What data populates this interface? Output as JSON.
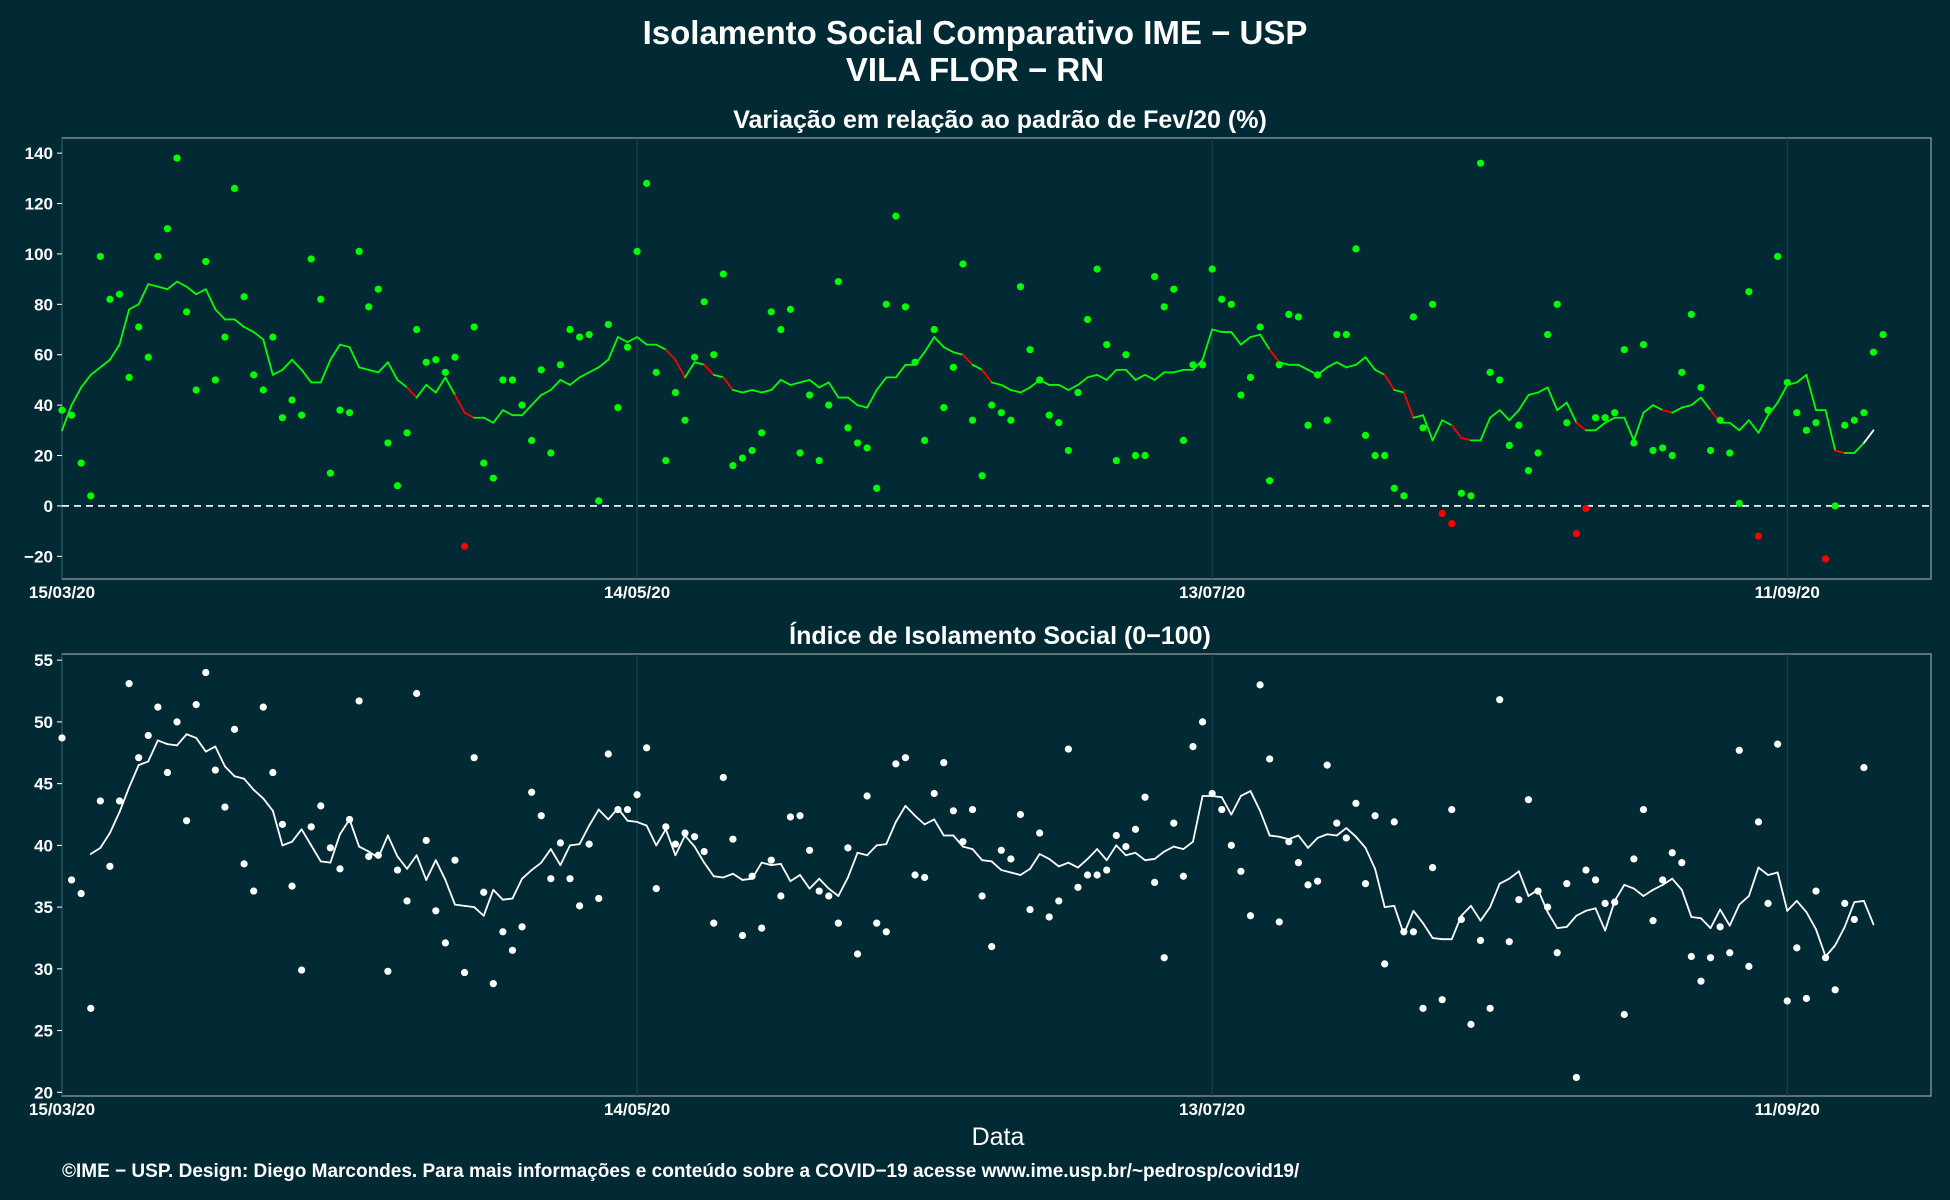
{
  "page": {
    "title_line1": "Isolamento Social Comparativo IME − USP",
    "title_line2": "VILA FLOR − RN",
    "credit": "©IME − USP. Design: Diego Marcondes. Para mais informações e conteúdo sobre a COVID−19 acesse www.ime.usp.br/~pedrosp/covid19/"
  },
  "colors": {
    "background": "#022a35",
    "panel_border": "#9aa3a6",
    "grid": "#1c4653",
    "positive": "#00ff00",
    "negative": "#ff0000",
    "index_points": "#ffffff",
    "trailing_segment": "#ffffff"
  },
  "chart_data": [
    {
      "type": "scatter",
      "title": "Variação em relação ao padrão de Fev/20 (%)",
      "xlabel": "",
      "ylabel": "",
      "x_start": "15/03/20",
      "x_tick_labels": [
        "15/03/20",
        "14/05/20",
        "13/07/20",
        "11/09/20"
      ],
      "x_tick_day_offsets": [
        0,
        60,
        120,
        180
      ],
      "xlim_days": [
        0,
        195
      ],
      "y_ticks": [
        -20,
        0,
        20,
        40,
        60,
        80,
        100,
        120,
        140
      ],
      "ylim": [
        -29,
        146
      ],
      "reference_line": 0,
      "grid": true,
      "legend": "none",
      "series": [
        {
          "kind": "daily_points",
          "values": [
            38,
            36,
            17,
            4,
            99,
            82,
            84,
            51,
            71,
            59,
            99,
            110,
            138,
            77,
            46,
            97,
            50,
            67,
            126,
            83,
            52,
            46,
            67,
            35,
            42,
            36,
            98,
            82,
            13,
            38,
            37,
            101,
            79,
            86,
            25,
            8,
            29,
            70,
            57,
            58,
            53,
            59,
            -16,
            71,
            17,
            11,
            50,
            50,
            40,
            26,
            54,
            21,
            56,
            70,
            67,
            68,
            2,
            72,
            39,
            63,
            101,
            128,
            53,
            18,
            45,
            34,
            59,
            81,
            60,
            92,
            16,
            19,
            22,
            29,
            77,
            70,
            78,
            21,
            44,
            18,
            40,
            89,
            31,
            25,
            23,
            7,
            80,
            115,
            79,
            57,
            26,
            70,
            39,
            55,
            96,
            34,
            12,
            40,
            37,
            34,
            87,
            62,
            50,
            36,
            33,
            22,
            45,
            74,
            94,
            64,
            18,
            60,
            20,
            20,
            91,
            79,
            86,
            26,
            56,
            56,
            94,
            82,
            80,
            44,
            51,
            71,
            10,
            56,
            76,
            75,
            32,
            52,
            34,
            68,
            68,
            102,
            28,
            20,
            20,
            7,
            4,
            75,
            31,
            80,
            -3,
            -7,
            5,
            4,
            136,
            53,
            50,
            24,
            32,
            14,
            21,
            68,
            80,
            33,
            -11,
            -1,
            35,
            35,
            37,
            62,
            25,
            64,
            22,
            23,
            20,
            53,
            76,
            47,
            22,
            34,
            21,
            1,
            85,
            -12,
            38,
            99,
            49,
            37,
            30,
            33,
            -21,
            0,
            32,
            34,
            37,
            61,
            68
          ],
          "color_rule": "green when value >= 0, red when value < 0"
        },
        {
          "kind": "rolling_mean_7d",
          "start_day": 0,
          "values": [
            30,
            40,
            47,
            52,
            55,
            58,
            64,
            78,
            80,
            88,
            87,
            86,
            89,
            87,
            84,
            86,
            78,
            74,
            74,
            71,
            69,
            66,
            52,
            54,
            58,
            54,
            49,
            49,
            58,
            64,
            63,
            55,
            54,
            53,
            57,
            50,
            47,
            43,
            48,
            45,
            51,
            44,
            37,
            35,
            35,
            33,
            38,
            36,
            36,
            40,
            44,
            46,
            50,
            48,
            51,
            53,
            55,
            58,
            67,
            65,
            67,
            64,
            64,
            62,
            58,
            51,
            57,
            56,
            52,
            51,
            46,
            45,
            46,
            45,
            46,
            50,
            48,
            49,
            50,
            47,
            49,
            43,
            43,
            40,
            39,
            46,
            51,
            51,
            56,
            56,
            61,
            67,
            63,
            61,
            60,
            56,
            54,
            49,
            48,
            46,
            45,
            47,
            50,
            48,
            48,
            46,
            48,
            51,
            52,
            50,
            54,
            54,
            50,
            52,
            50,
            53,
            53,
            54,
            54,
            58,
            70,
            69,
            69,
            64,
            67,
            68,
            62,
            57,
            56,
            56,
            54,
            52,
            55,
            57,
            55,
            56,
            59,
            54,
            52,
            46,
            45,
            35,
            36,
            26,
            34,
            32,
            27,
            26,
            26,
            35,
            38,
            34,
            38,
            44,
            45,
            47,
            38,
            41,
            33,
            30,
            30,
            33,
            35,
            35,
            26,
            37,
            40,
            38,
            37,
            39,
            40,
            43,
            38,
            33,
            33,
            30,
            34,
            29,
            36,
            41,
            48,
            49,
            52,
            38,
            38,
            22,
            21,
            21,
            25,
            30
          ],
          "segment_rule": "green; red where the series falls to a local low; last segment white"
        }
      ]
    },
    {
      "type": "scatter",
      "title": "Índice de Isolamento Social (0−100)",
      "xlabel": "Data",
      "ylabel": "",
      "x_start": "15/03/20",
      "x_tick_labels": [
        "15/03/20",
        "14/05/20",
        "13/07/20",
        "11/09/20"
      ],
      "x_tick_day_offsets": [
        0,
        60,
        120,
        180
      ],
      "xlim_days": [
        0,
        195
      ],
      "y_ticks": [
        20,
        25,
        30,
        35,
        40,
        45,
        50,
        55
      ],
      "ylim": [
        19.7,
        55.5
      ],
      "grid": true,
      "legend": "none",
      "series": [
        {
          "kind": "daily_points",
          "values": [
            48.7,
            37.2,
            36.1,
            26.8,
            43.6,
            38.3,
            43.6,
            53.1,
            47.1,
            48.9,
            51.2,
            45.9,
            50.0,
            42.0,
            51.4,
            54.0,
            46.1,
            43.1,
            49.4,
            38.5,
            36.3,
            51.2,
            45.9,
            41.7,
            36.7,
            29.9,
            41.5,
            43.2,
            39.8,
            38.1,
            42.1,
            51.7,
            39.1,
            39.2,
            29.8,
            38.0,
            35.5,
            52.3,
            40.4,
            34.7,
            32.1,
            38.8,
            29.7,
            47.1,
            36.2,
            28.8,
            33.0,
            31.5,
            33.4,
            44.3,
            42.4,
            37.3,
            40.2,
            37.3,
            35.1,
            40.1,
            35.7,
            47.4,
            42.9,
            42.9,
            44.1,
            47.9,
            36.5,
            41.5,
            40.1,
            41.0,
            40.7,
            39.5,
            33.7,
            45.5,
            40.5,
            32.7,
            37.5,
            33.3,
            38.8,
            35.9,
            42.3,
            42.4,
            39.6,
            36.3,
            35.9,
            33.7,
            39.8,
            31.2,
            44.0,
            33.7,
            33.0,
            46.6,
            47.1,
            37.6,
            37.4,
            44.2,
            46.7,
            42.8,
            40.3,
            42.9,
            35.9,
            31.8,
            39.6,
            38.9,
            42.5,
            34.8,
            41.0,
            34.2,
            35.5,
            47.8,
            36.6,
            37.6,
            37.6,
            38.0,
            40.8,
            39.9,
            41.3,
            43.9,
            37.0,
            30.9,
            41.8,
            37.5,
            48.0,
            50.0,
            44.2,
            42.9,
            40.0,
            37.9,
            34.3,
            53.0,
            47.0,
            33.8,
            40.3,
            38.6,
            36.8,
            37.1,
            46.5,
            41.8,
            40.6,
            43.4,
            36.9,
            42.4,
            30.4,
            41.9,
            33.0,
            33.0,
            26.8,
            38.2,
            27.5,
            42.9,
            34.0,
            25.5,
            32.3,
            26.8,
            51.8,
            32.2,
            35.6,
            43.7,
            36.3,
            35.0,
            31.3,
            36.9,
            21.2,
            38.0,
            37.2,
            35.3,
            35.4,
            26.3,
            38.9,
            42.9,
            33.9,
            37.2,
            39.4,
            38.6,
            31.0,
            29.0,
            30.9,
            33.4,
            31.3,
            47.7,
            30.2,
            41.9,
            35.3,
            48.2,
            27.4,
            31.7,
            27.6,
            36.3,
            30.9,
            28.3,
            35.3,
            34.0,
            46.3
          ]
        },
        {
          "kind": "rolling_mean_7d",
          "start_day": 3,
          "values": [
            39.3,
            39.8,
            41.0,
            42.7,
            44.7,
            46.5,
            46.8,
            48.5,
            48.2,
            48.1,
            49.0,
            48.7,
            47.6,
            48.0,
            46.4,
            45.6,
            45.4,
            44.5,
            43.8,
            42.8,
            40.0,
            40.3,
            41.3,
            40.0,
            38.7,
            38.6,
            40.9,
            42.1,
            39.9,
            39.5,
            39.0,
            40.8,
            39.1,
            38.1,
            39.2,
            37.2,
            38.8,
            37.2,
            35.2,
            35.1,
            35.0,
            34.3,
            36.4,
            35.6,
            35.7,
            37.3,
            38.0,
            38.6,
            39.7,
            38.4,
            40.0,
            40.1,
            41.6,
            42.9,
            42.1,
            43.0,
            42.0,
            41.9,
            41.6,
            40.0,
            41.3,
            39.2,
            40.8,
            39.9,
            38.6,
            37.5,
            37.4,
            37.7,
            37.2,
            37.3,
            38.6,
            38.4,
            38.5,
            37.1,
            37.6,
            36.5,
            37.3,
            36.5,
            35.9,
            37.4,
            39.4,
            39.2,
            40.0,
            40.1,
            41.9,
            43.2,
            42.4,
            41.7,
            42.1,
            40.8,
            40.8,
            39.9,
            39.7,
            38.8,
            38.7,
            38.0,
            37.8,
            37.6,
            38.1,
            39.3,
            38.9,
            38.3,
            38.6,
            38.2,
            38.9,
            39.7,
            38.8,
            40.0,
            39.2,
            39.4,
            38.8,
            38.9,
            39.5,
            39.9,
            39.7,
            40.3,
            44.0,
            44.0,
            43.9,
            42.5,
            44.0,
            44.4,
            42.8,
            40.8,
            40.7,
            40.5,
            40.8,
            39.8,
            40.6,
            40.9,
            40.8,
            41.4,
            40.7,
            39.8,
            38.1,
            35.0,
            35.1,
            32.8,
            34.7,
            33.7,
            32.5,
            32.4,
            32.4,
            34.3,
            35.1,
            33.9,
            35.0,
            36.9,
            37.3,
            37.9,
            35.9,
            36.4,
            34.6,
            33.3,
            33.4,
            34.3,
            34.7,
            34.9,
            33.1,
            35.5,
            36.8,
            36.5,
            35.9,
            36.4,
            36.8,
            37.3,
            36.4,
            34.2,
            34.1,
            33.3,
            34.8,
            33.5,
            35.2,
            35.9,
            38.2,
            37.6,
            37.8,
            34.7,
            35.5,
            34.6,
            33.2,
            31.0,
            31.9,
            33.4,
            35.4,
            35.5,
            33.6
          ],
          "color": "white"
        }
      ]
    }
  ]
}
